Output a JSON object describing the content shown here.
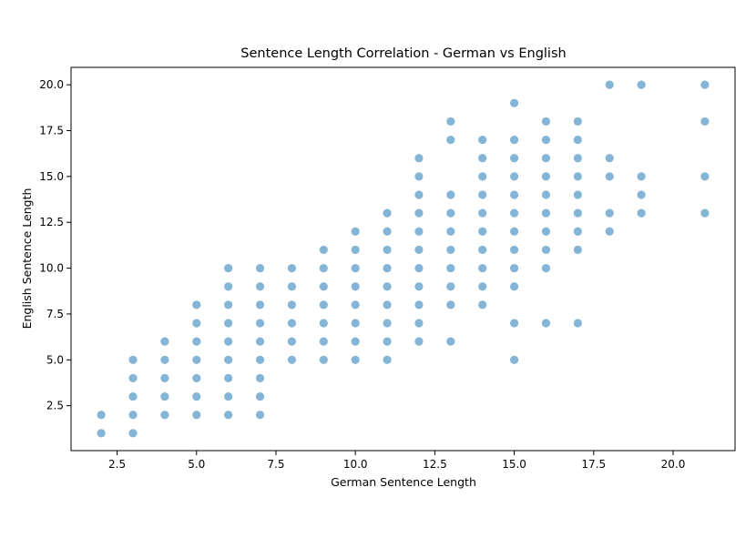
{
  "chart_data": {
    "type": "scatter",
    "title": "Sentence Length Correlation - German vs English",
    "xlabel": "German Sentence Length",
    "ylabel": "English Sentence Length",
    "xlim": [
      1.05,
      21.95
    ],
    "ylim": [
      0.05,
      20.95
    ],
    "xticks": [
      "2.5",
      "5.0",
      "7.5",
      "10.0",
      "12.5",
      "15.0",
      "17.5",
      "20.0"
    ],
    "yticks": [
      "2.5",
      "5.0",
      "7.5",
      "10.0",
      "12.5",
      "15.0",
      "17.5",
      "20.0"
    ],
    "grid": false,
    "color": "#1f77b4",
    "alpha": 0.55,
    "x": [
      2,
      2,
      3,
      3,
      3,
      3,
      3,
      4,
      4,
      4,
      4,
      4,
      5,
      5,
      5,
      5,
      5,
      5,
      5,
      6,
      6,
      6,
      6,
      6,
      6,
      6,
      6,
      6,
      7,
      7,
      7,
      7,
      7,
      7,
      7,
      7,
      7,
      8,
      8,
      8,
      8,
      8,
      8,
      9,
      9,
      9,
      9,
      9,
      9,
      9,
      10,
      10,
      10,
      10,
      10,
      10,
      10,
      10,
      11,
      11,
      11,
      11,
      11,
      11,
      11,
      11,
      11,
      12,
      12,
      12,
      12,
      12,
      12,
      12,
      12,
      12,
      12,
      12,
      13,
      13,
      13,
      13,
      13,
      13,
      13,
      13,
      13,
      13,
      14,
      14,
      14,
      14,
      14,
      14,
      14,
      14,
      14,
      14,
      15,
      15,
      15,
      15,
      15,
      15,
      15,
      15,
      15,
      15,
      15,
      15,
      16,
      16,
      16,
      16,
      16,
      16,
      16,
      16,
      16,
      16,
      17,
      17,
      17,
      17,
      17,
      17,
      17,
      17,
      17,
      18,
      18,
      18,
      18,
      18,
      19,
      19,
      19,
      19,
      21,
      21,
      21,
      21
    ],
    "y": [
      1,
      2,
      1,
      2,
      3,
      4,
      5,
      2,
      3,
      4,
      5,
      6,
      2,
      3,
      4,
      5,
      6,
      7,
      8,
      2,
      3,
      4,
      5,
      6,
      7,
      8,
      9,
      10,
      2,
      3,
      4,
      5,
      6,
      7,
      8,
      9,
      10,
      5,
      6,
      7,
      8,
      9,
      10,
      5,
      6,
      7,
      8,
      9,
      10,
      11,
      5,
      6,
      7,
      8,
      9,
      10,
      11,
      12,
      5,
      6,
      7,
      8,
      9,
      10,
      11,
      12,
      13,
      6,
      7,
      8,
      9,
      10,
      11,
      12,
      13,
      14,
      15,
      16,
      6,
      8,
      9,
      10,
      11,
      12,
      13,
      14,
      17,
      18,
      8,
      9,
      10,
      11,
      12,
      13,
      14,
      15,
      16,
      17,
      5,
      7,
      9,
      10,
      11,
      12,
      13,
      14,
      15,
      16,
      17,
      19,
      7,
      10,
      11,
      12,
      13,
      14,
      15,
      16,
      17,
      18,
      7,
      11,
      12,
      13,
      14,
      15,
      16,
      17,
      18,
      12,
      13,
      15,
      16,
      20,
      13,
      14,
      15,
      20,
      13,
      15,
      18,
      20
    ]
  }
}
